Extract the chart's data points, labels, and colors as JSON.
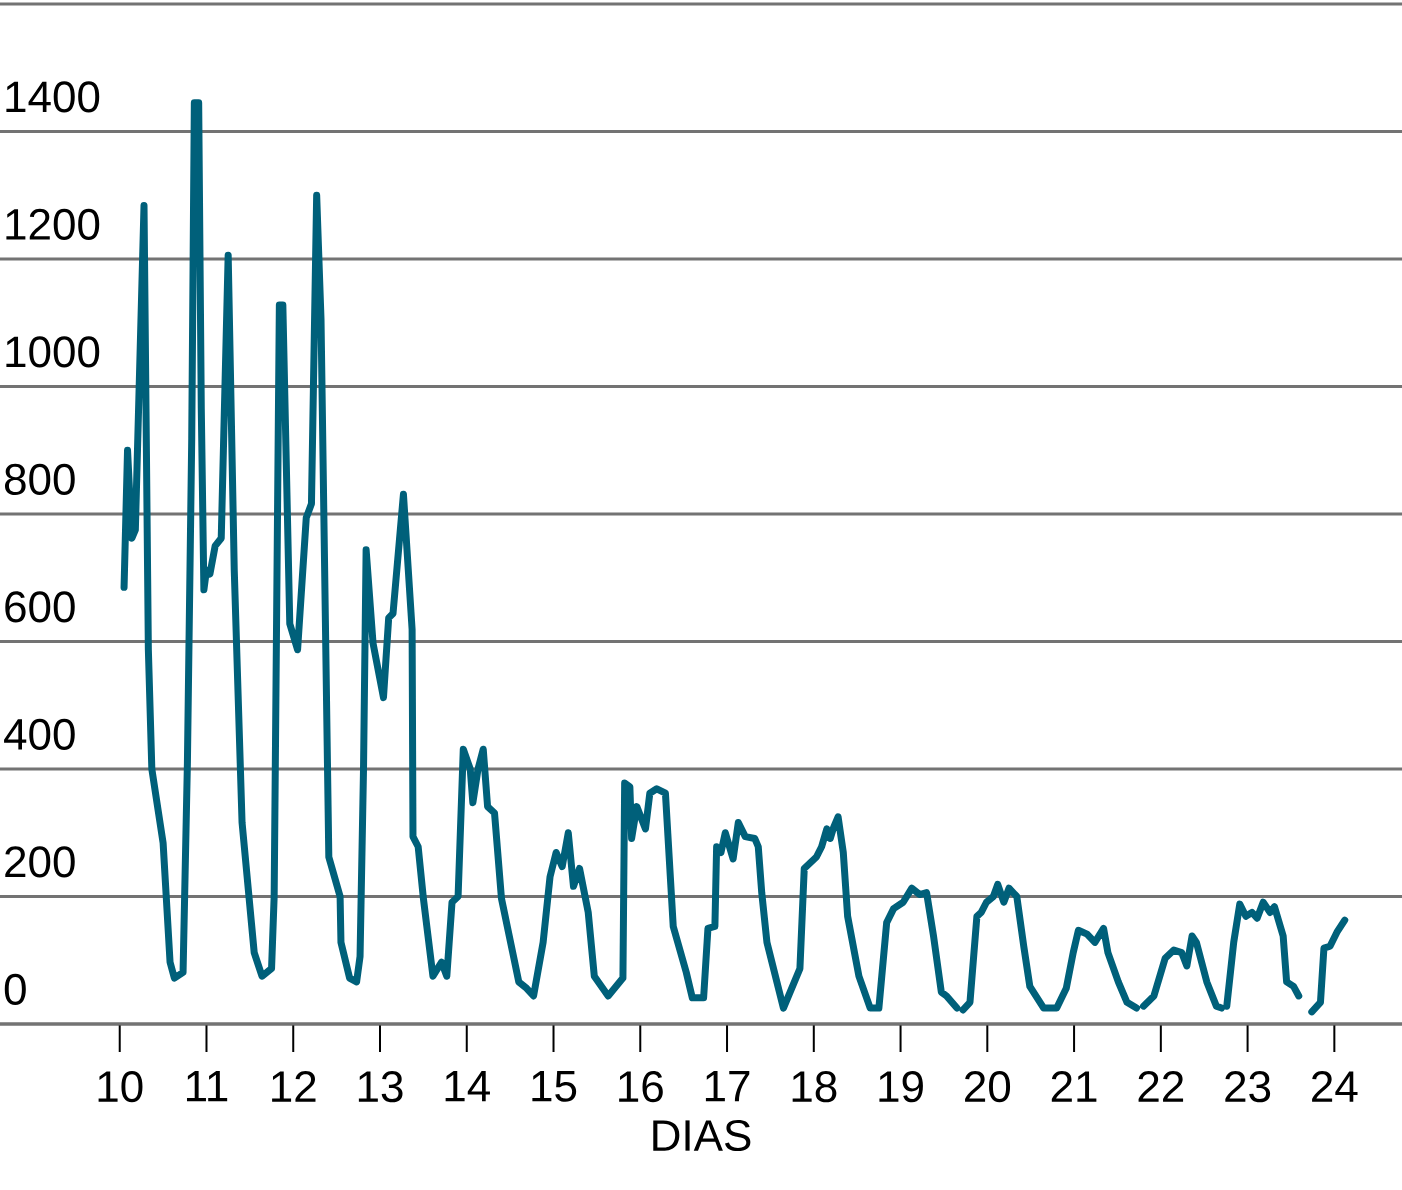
{
  "chart_data": {
    "type": "line",
    "xlabel": "DIAS",
    "xlim": [
      8.62,
      24.78
    ],
    "xticks": [
      10,
      11,
      12,
      13,
      14,
      15,
      16,
      17,
      18,
      19,
      20,
      21,
      22,
      23,
      24
    ],
    "ylim": [
      0,
      1600
    ],
    "yticks": [
      0,
      200,
      400,
      600,
      800,
      1000,
      1200,
      1400,
      {
        "value": 1600,
        "label": null
      }
    ],
    "grid": "y",
    "marker": "none",
    "line_style": "solid",
    "series": [
      {
        "color": "#00607a",
        "x": [
          10.05,
          10.09,
          10.14,
          10.18,
          10.28,
          10.33,
          10.37,
          10.5,
          10.58,
          10.63,
          10.73,
          10.78,
          10.83,
          10.86,
          10.91,
          10.94,
          10.97,
          11.0,
          11.04,
          11.1,
          11.17,
          11.25,
          11.32,
          11.41,
          11.55,
          11.64,
          11.75,
          11.78,
          11.84,
          11.88,
          11.96,
          12.05,
          12.15,
          12.21,
          12.27,
          12.32,
          12.41,
          12.54,
          12.55,
          12.65,
          12.73,
          12.77,
          12.81,
          12.84,
          12.92,
          13.04,
          13.1,
          13.15,
          13.27,
          13.37,
          13.38,
          13.44,
          13.5,
          13.61,
          13.71,
          13.77,
          13.83,
          13.9,
          13.96,
          14.04,
          14.07,
          14.13,
          14.19,
          14.24,
          14.32,
          14.4,
          14.6,
          14.69,
          14.77,
          14.88,
          14.96,
          15.03,
          15.1,
          15.17,
          15.23,
          15.3,
          15.4,
          15.47,
          15.63,
          15.8,
          15.82,
          15.88,
          15.9,
          15.96,
          16.06,
          16.11,
          16.19,
          16.29,
          16.38,
          16.53,
          16.6,
          16.73,
          16.78,
          16.86,
          16.88,
          16.93,
          16.98,
          17.07,
          17.13,
          17.21,
          17.32,
          17.36,
          17.4,
          17.46,
          17.65,
          17.84,
          17.89,
          17.96,
          18.03,
          18.09,
          18.15,
          18.19,
          18.23,
          18.28,
          18.34,
          18.39,
          18.52,
          18.65,
          18.75,
          18.84,
          18.92,
          19.03,
          19.13,
          19.22,
          19.3,
          19.38,
          19.47,
          19.53,
          19.65,
          19.69,
          19.72,
          19.8,
          19.88,
          19.93,
          19.99,
          20.07,
          20.12,
          20.19,
          20.25,
          20.34,
          20.42,
          20.49,
          20.65,
          20.8,
          20.91,
          20.99,
          21.05,
          21.15,
          21.24,
          21.34,
          21.39,
          21.51,
          21.61,
          21.72,
          21.76,
          21.8,
          21.92,
          22.05,
          22.15,
          22.24,
          22.3,
          22.36,
          22.41,
          22.53,
          22.64,
          22.7,
          22.73,
          22.76,
          22.84,
          22.91,
          22.98,
          23.05,
          23.11,
          23.18,
          23.26,
          23.31,
          23.41,
          23.45,
          23.53,
          23.59,
          23.66,
          23.74,
          23.84,
          23.88,
          23.95,
          24.03,
          24.12
        ],
        "values": [
          685,
          900,
          762,
          775,
          1284,
          587,
          400,
          284,
          97,
          72,
          81,
          409,
          919,
          1445,
          1445,
          966,
          681,
          712,
          706,
          750,
          762,
          1206,
          712,
          316,
          112,
          75,
          87,
          200,
          1128,
          1128,
          628,
          587,
          794,
          816,
          1300,
          1106,
          262,
          200,
          128,
          72,
          66,
          106,
          400,
          744,
          597,
          512,
          637,
          644,
          831,
          619,
          294,
          278,
          197,
          75,
          97,
          75,
          191,
          200,
          431,
          400,
          347,
          400,
          431,
          341,
          331,
          197,
          66,
          56,
          44,
          128,
          231,
          269,
          247,
          300,
          216,
          244,
          175,
          75,
          44,
          72,
          378,
          372,
          291,
          341,
          306,
          362,
          369,
          362,
          153,
          81,
          41,
          41,
          150,
          153,
          278,
          269,
          300,
          259,
          316,
          294,
          291,
          278,
          206,
          128,
          25,
          87,
          244,
          253,
          262,
          278,
          306,
          291,
          309,
          325,
          269,
          169,
          75,
          25,
          25,
          159,
          181,
          191,
          213,
          203,
          206,
          138,
          50,
          44,
          25,
          null,
          22,
          34,
          169,
          175,
          191,
          200,
          219,
          191,
          213,
          200,
          122,
          59,
          25,
          25,
          56,
          112,
          147,
          141,
          128,
          150,
          112,
          66,
          34,
          25,
          null,
          28,
          44,
          103,
          116,
          112,
          91,
          138,
          128,
          66,
          28,
          25,
          null,
          28,
          128,
          188,
          169,
          175,
          166,
          191,
          175,
          184,
          138,
          66,
          59,
          44,
          null,
          19,
          34,
          119,
          122,
          144,
          163
        ]
      }
    ]
  }
}
